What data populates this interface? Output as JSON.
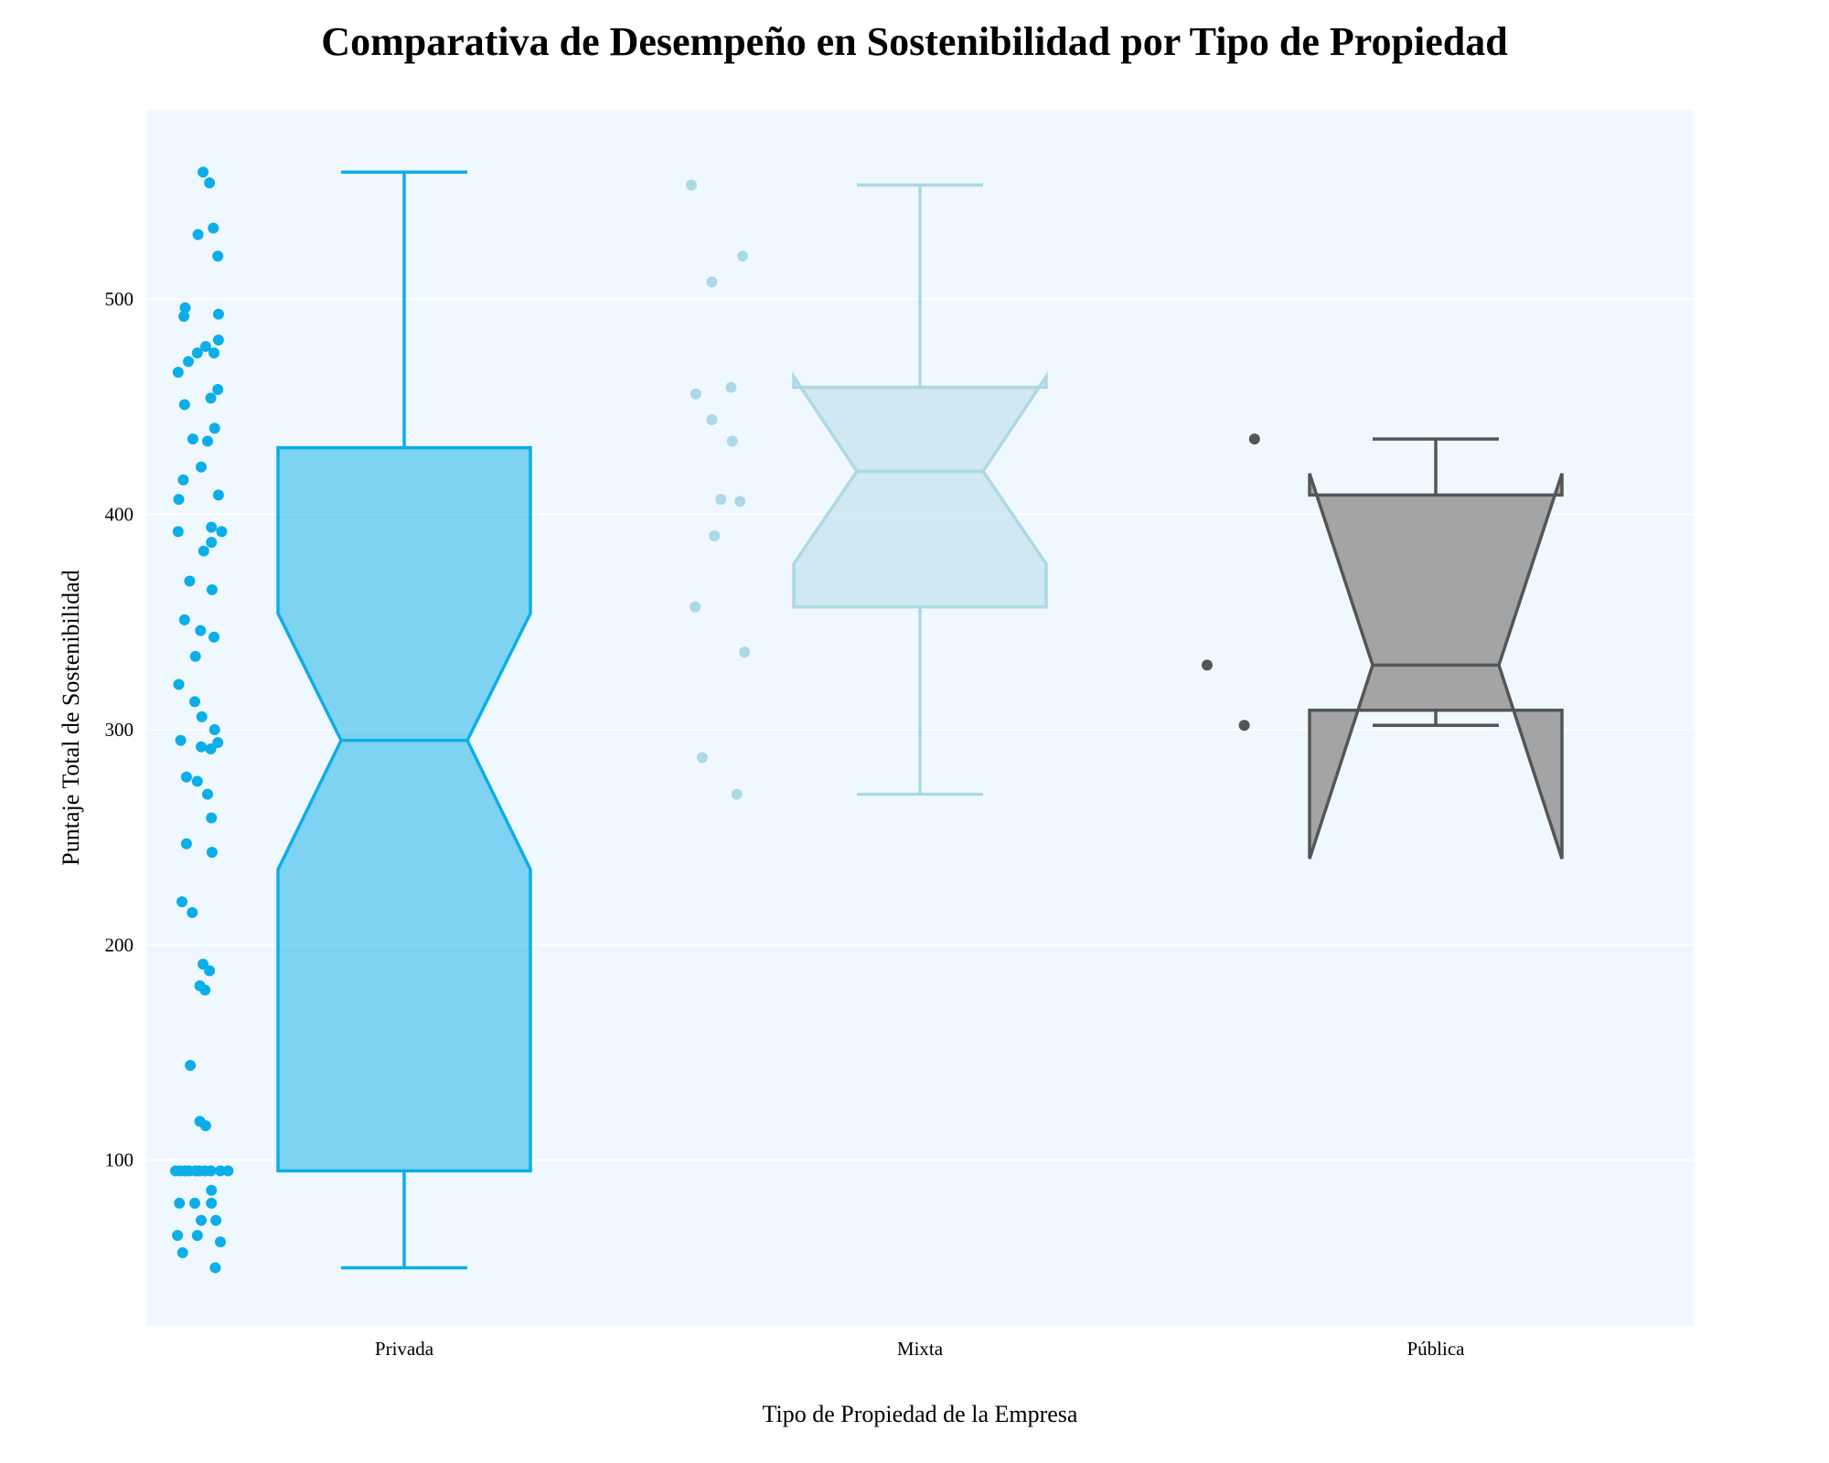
{
  "chart_data": {
    "type": "box",
    "title": "Comparativa de Desempeño en Sostenibilidad por Tipo de Propiedad",
    "xlabel": "Tipo de Propiedad de la Empresa",
    "ylabel": "Puntaje Total de Sostenibilidad",
    "categories": [
      "Privada",
      "Mixta",
      "Pública"
    ],
    "yticks": [
      100,
      200,
      300,
      400,
      500
    ],
    "ylim": [
      23,
      588
    ],
    "grid": true,
    "legend": "none",
    "plot_background": "#f0f8ff",
    "series": [
      {
        "category": "Privada",
        "color": "#0caee8",
        "fill": "rgba(12,174,232,0.5)",
        "box": {
          "min": 50,
          "q1": 95,
          "median": 295,
          "q3": 431,
          "max": 559,
          "notch_low": 235,
          "notch_high": 354
        },
        "points": [
          [
            559,
            0.43
          ],
          [
            554,
            0.53
          ],
          [
            533,
            0.59
          ],
          [
            530,
            0.35
          ],
          [
            520,
            0.66
          ],
          [
            496,
            0.15
          ],
          [
            493,
            0.67
          ],
          [
            492,
            0.13
          ],
          [
            481,
            0.67
          ],
          [
            478,
            0.47
          ],
          [
            475,
            0.34
          ],
          [
            475,
            0.6
          ],
          [
            471,
            0.2
          ],
          [
            466,
            0.04
          ],
          [
            458,
            0.66
          ],
          [
            454,
            0.55
          ],
          [
            451,
            0.14
          ],
          [
            440,
            0.61
          ],
          [
            435,
            0.27
          ],
          [
            434,
            0.5
          ],
          [
            422,
            0.4
          ],
          [
            416,
            0.12
          ],
          [
            409,
            0.67
          ],
          [
            407,
            0.05
          ],
          [
            394,
            0.56
          ],
          [
            392,
            0.72
          ],
          [
            392,
            0.04
          ],
          [
            387,
            0.56
          ],
          [
            383,
            0.44
          ],
          [
            369,
            0.22
          ],
          [
            365,
            0.57
          ],
          [
            351,
            0.14
          ],
          [
            346,
            0.39
          ],
          [
            343,
            0.6
          ],
          [
            334,
            0.31
          ],
          [
            321,
            0.05
          ],
          [
            313,
            0.3
          ],
          [
            306,
            0.41
          ],
          [
            300,
            0.61
          ],
          [
            295,
            0.08
          ],
          [
            294,
            0.66
          ],
          [
            292,
            0.4
          ],
          [
            291,
            0.55
          ],
          [
            278,
            0.17
          ],
          [
            276,
            0.34
          ],
          [
            270,
            0.5
          ],
          [
            259,
            0.56
          ],
          [
            247,
            0.17
          ],
          [
            243,
            0.57
          ],
          [
            220,
            0.1
          ],
          [
            215,
            0.26
          ],
          [
            191,
            0.43
          ],
          [
            188,
            0.53
          ],
          [
            181,
            0.38
          ],
          [
            179,
            0.46
          ],
          [
            144,
            0.23
          ],
          [
            118,
            0.38
          ],
          [
            116,
            0.47
          ],
          [
            95,
            0.0
          ],
          [
            95,
            0.07
          ],
          [
            95,
            0.15
          ],
          [
            95,
            0.21
          ],
          [
            95,
            0.31
          ],
          [
            95,
            0.37
          ],
          [
            95,
            0.46
          ],
          [
            95,
            0.55
          ],
          [
            95,
            0.7
          ],
          [
            95,
            0.82
          ],
          [
            86,
            0.56
          ],
          [
            80,
            0.06
          ],
          [
            80,
            0.3
          ],
          [
            80,
            0.56
          ],
          [
            72,
            0.4
          ],
          [
            72,
            0.63
          ],
          [
            65,
            0.03
          ],
          [
            65,
            0.34
          ],
          [
            62,
            0.7
          ],
          [
            57,
            0.11
          ],
          [
            50,
            0.62
          ]
        ]
      },
      {
        "category": "Mixta",
        "color": "#add8e6",
        "fill": "rgba(173,216,230,0.5)",
        "box": {
          "min": 270,
          "q1": 357,
          "median": 420,
          "q3": 459,
          "max": 553,
          "notch_low": 377,
          "notch_high": 464
        },
        "points": [
          [
            553,
            0.0
          ],
          [
            520,
            0.8
          ],
          [
            508,
            0.32
          ],
          [
            459,
            0.62
          ],
          [
            456,
            0.07
          ],
          [
            444,
            0.32
          ],
          [
            434,
            0.64
          ],
          [
            407,
            0.46
          ],
          [
            406,
            0.76
          ],
          [
            390,
            0.36
          ],
          [
            357,
            0.06
          ],
          [
            336,
            0.83
          ],
          [
            287,
            0.17
          ],
          [
            270,
            0.71
          ]
        ]
      },
      {
        "category": "Pública",
        "color": "#555555",
        "fill": "rgba(128,128,128,0.7)",
        "box": {
          "min": 302,
          "q1": 309,
          "median": 330,
          "q3": 409,
          "max": 435,
          "notch_low": 240,
          "notch_high": 419
        },
        "points": [
          [
            435,
            0.74
          ],
          [
            330,
            0.0
          ],
          [
            302,
            0.58
          ]
        ]
      }
    ]
  }
}
